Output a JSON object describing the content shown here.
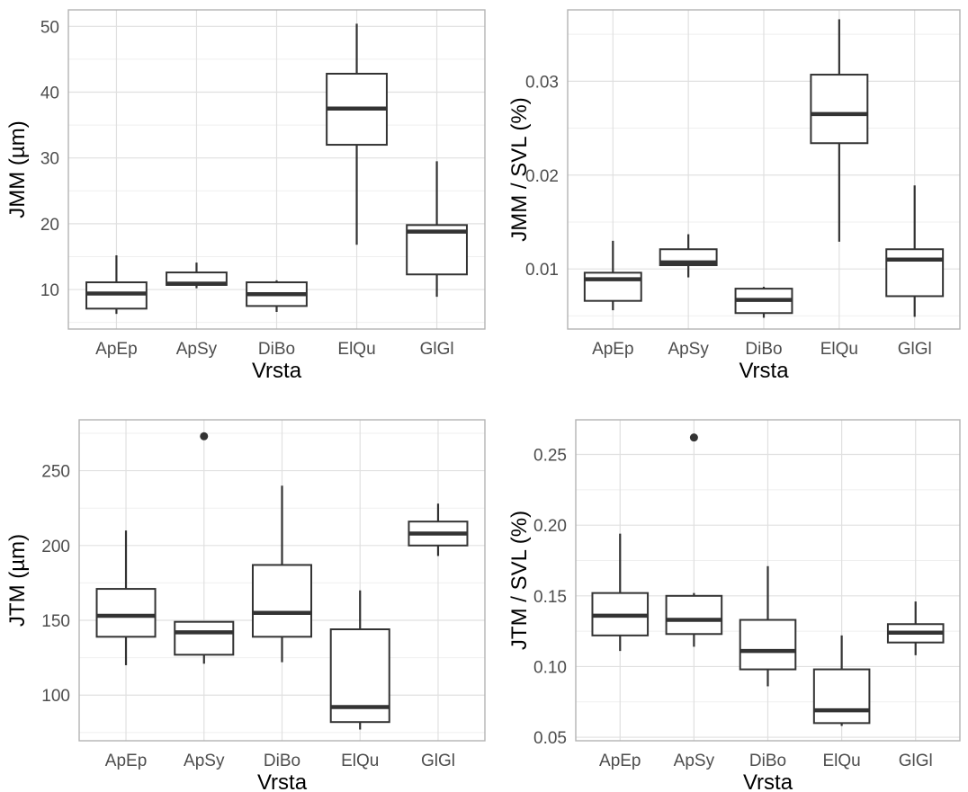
{
  "colors": {
    "panel_border": "#b3b3b3",
    "grid_major": "#e0e0e0",
    "grid_minor": "#efefef",
    "box_stroke": "#333333",
    "tick_text": "#4d4d4d",
    "axis_title": "#000000"
  },
  "chart_data": [
    {
      "type": "box",
      "xlabel": "Vrsta",
      "ylabel": "JMM (µm)",
      "categories": [
        "ApEp",
        "ApSy",
        "DiBo",
        "ElQu",
        "GlGl"
      ],
      "yticks": [
        10,
        20,
        30,
        40,
        50
      ],
      "yticklabels": [
        "10",
        "20",
        "30",
        "40",
        "50"
      ],
      "ylim": [
        4.0,
        52.5
      ],
      "grid": true,
      "boxes": [
        {
          "category": "ApEp",
          "whisker_low": 6.3,
          "q1": 7.1,
          "median": 9.4,
          "q3": 11.1,
          "whisker_high": 15.2,
          "outliers": []
        },
        {
          "category": "ApSy",
          "whisker_low": 10.2,
          "q1": 10.7,
          "median": 10.9,
          "q3": 12.6,
          "whisker_high": 14.1,
          "outliers": []
        },
        {
          "category": "DiBo",
          "whisker_low": 6.6,
          "q1": 7.5,
          "median": 9.3,
          "q3": 11.1,
          "whisker_high": 11.4,
          "outliers": []
        },
        {
          "category": "ElQu",
          "whisker_low": 16.8,
          "q1": 32.0,
          "median": 37.5,
          "q3": 42.8,
          "whisker_high": 50.4,
          "outliers": []
        },
        {
          "category": "GlGl",
          "whisker_low": 8.9,
          "q1": 12.3,
          "median": 18.8,
          "q3": 19.8,
          "whisker_high": 29.5,
          "outliers": []
        }
      ]
    },
    {
      "type": "box",
      "xlabel": "Vrsta",
      "ylabel": "JMM / SVL (%)",
      "categories": [
        "ApEp",
        "ApSy",
        "DiBo",
        "ElQu",
        "GlGl"
      ],
      "yticks": [
        0.01,
        0.02,
        0.03
      ],
      "yticklabels": [
        "0.01",
        "0.02",
        "0.03"
      ],
      "ylim": [
        0.0036,
        0.0376
      ],
      "grid": true,
      "boxes": [
        {
          "category": "ApEp",
          "whisker_low": 0.0056,
          "q1": 0.0066,
          "median": 0.0089,
          "q3": 0.0096,
          "whisker_high": 0.013,
          "outliers": []
        },
        {
          "category": "ApSy",
          "whisker_low": 0.0091,
          "q1": 0.0104,
          "median": 0.0107,
          "q3": 0.0121,
          "whisker_high": 0.0137,
          "outliers": []
        },
        {
          "category": "DiBo",
          "whisker_low": 0.0048,
          "q1": 0.0053,
          "median": 0.0067,
          "q3": 0.0079,
          "whisker_high": 0.0081,
          "outliers": []
        },
        {
          "category": "ElQu",
          "whisker_low": 0.0129,
          "q1": 0.0234,
          "median": 0.0265,
          "q3": 0.0307,
          "whisker_high": 0.0366,
          "outliers": []
        },
        {
          "category": "GlGl",
          "whisker_low": 0.0049,
          "q1": 0.0071,
          "median": 0.011,
          "q3": 0.0121,
          "whisker_high": 0.0189,
          "outliers": []
        }
      ]
    },
    {
      "type": "box",
      "xlabel": "Vrsta",
      "ylabel": "JTM (µm)",
      "categories": [
        "ApEp",
        "ApSy",
        "DiBo",
        "ElQu",
        "GlGl"
      ],
      "yticks": [
        100,
        150,
        200,
        250
      ],
      "yticklabels": [
        "100",
        "150",
        "200",
        "250"
      ],
      "ylim": [
        69.5,
        284.0
      ],
      "grid": true,
      "boxes": [
        {
          "category": "ApEp",
          "whisker_low": 120,
          "q1": 139,
          "median": 153,
          "q3": 171,
          "whisker_high": 210,
          "outliers": []
        },
        {
          "category": "ApSy",
          "whisker_low": 121,
          "q1": 127,
          "median": 142,
          "q3": 149,
          "whisker_high": 149,
          "outliers": [
            273
          ]
        },
        {
          "category": "DiBo",
          "whisker_low": 122,
          "q1": 139,
          "median": 155,
          "q3": 187,
          "whisker_high": 240,
          "outliers": []
        },
        {
          "category": "ElQu",
          "whisker_low": 77,
          "q1": 82,
          "median": 92,
          "q3": 144,
          "whisker_high": 170,
          "outliers": []
        },
        {
          "category": "GlGl",
          "whisker_low": 193,
          "q1": 200,
          "median": 208,
          "q3": 216,
          "whisker_high": 228,
          "outliers": []
        }
      ]
    },
    {
      "type": "box",
      "xlabel": "Vrsta",
      "ylabel": "JTM / SVL (%)",
      "categories": [
        "ApEp",
        "ApSy",
        "DiBo",
        "ElQu",
        "GlGl"
      ],
      "yticks": [
        0.05,
        0.1,
        0.15,
        0.2,
        0.25
      ],
      "yticklabels": [
        "0.05",
        "0.10",
        "0.15",
        "0.20",
        "0.25"
      ],
      "ylim": [
        0.0475,
        0.2745
      ],
      "grid": true,
      "boxes": [
        {
          "category": "ApEp",
          "whisker_low": 0.111,
          "q1": 0.122,
          "median": 0.136,
          "q3": 0.152,
          "whisker_high": 0.194,
          "outliers": []
        },
        {
          "category": "ApSy",
          "whisker_low": 0.114,
          "q1": 0.123,
          "median": 0.133,
          "q3": 0.15,
          "whisker_high": 0.152,
          "outliers": [
            0.262
          ]
        },
        {
          "category": "DiBo",
          "whisker_low": 0.086,
          "q1": 0.098,
          "median": 0.111,
          "q3": 0.133,
          "whisker_high": 0.171,
          "outliers": []
        },
        {
          "category": "ElQu",
          "whisker_low": 0.058,
          "q1": 0.06,
          "median": 0.069,
          "q3": 0.098,
          "whisker_high": 0.122,
          "outliers": []
        },
        {
          "category": "GlGl",
          "whisker_low": 0.108,
          "q1": 0.117,
          "median": 0.124,
          "q3": 0.13,
          "whisker_high": 0.146,
          "outliers": []
        }
      ]
    }
  ]
}
